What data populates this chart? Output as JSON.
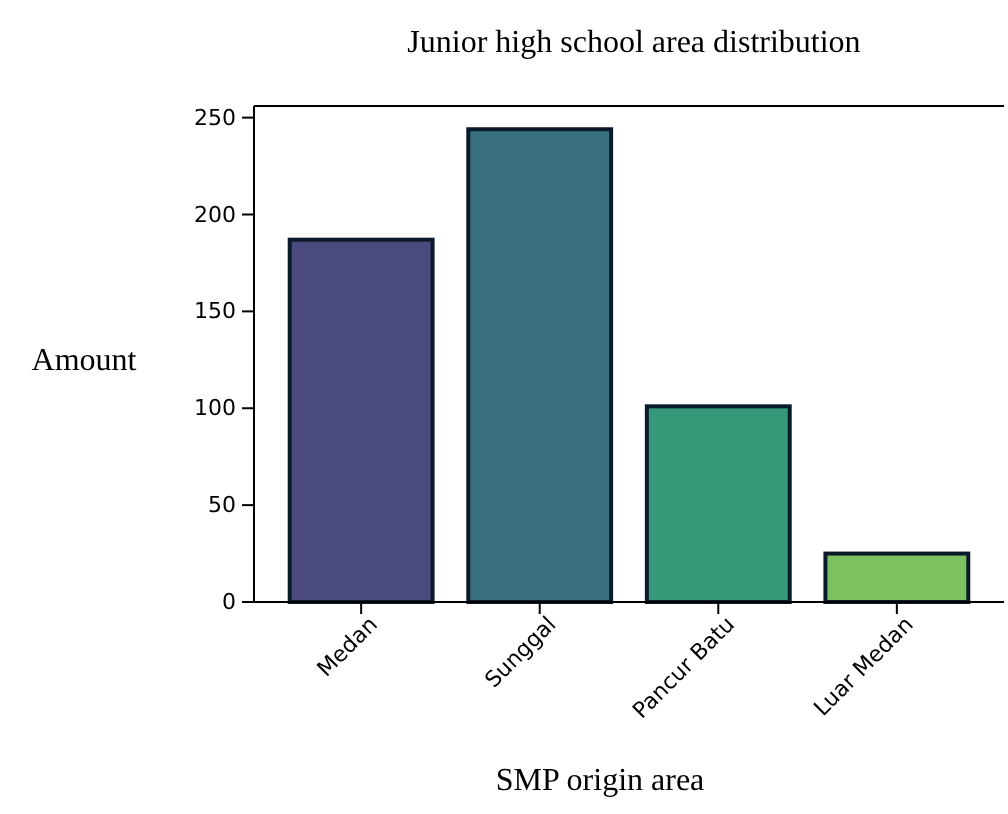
{
  "chart_data": {
    "type": "bar",
    "title": "Junior high school area distribution",
    "xlabel": "SMP origin area",
    "ylabel": "Amount",
    "categories": [
      "Medan",
      "Sunggal",
      "Pancur Batu",
      "Luar Medan"
    ],
    "values": [
      187,
      244,
      101,
      25
    ],
    "colors": [
      "#4a4a7c",
      "#38707e",
      "#35997a",
      "#7dc05f"
    ],
    "ylim": [
      0,
      256
    ],
    "yticks": [
      0,
      50,
      100,
      150,
      200,
      250
    ],
    "grid": false
  }
}
